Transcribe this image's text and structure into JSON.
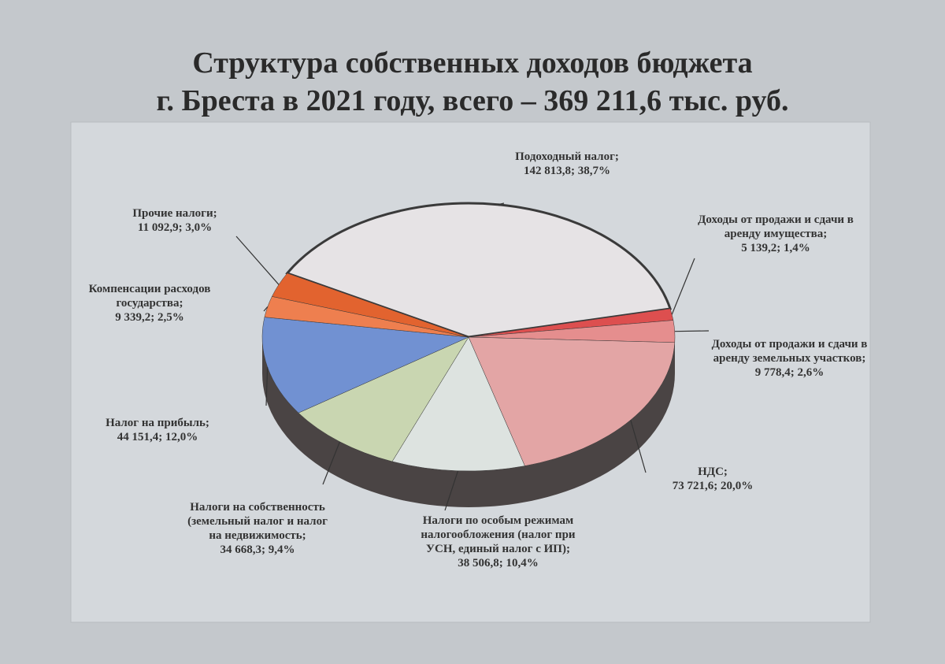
{
  "chart_data": {
    "type": "pie",
    "title": "Структура собственных доходов бюджета",
    "subtitle": "г. Бреста в 2021 году, всего – 369 211,6 тыс. руб.",
    "categories": [
      "Подоходный налог;",
      "Доходы от продажи и сдачи в аренду имущества;",
      "Доходы от продажи и сдачи в аренду земельных участков;",
      "НДС;",
      "Налоги по особым режимам налогообложения (налог при УСН, единый налог с ИП);",
      "Налоги на собственность (земельный налог и налог на недвижимость;",
      "Налог на прибыль;",
      "Компенсации расходов государства;",
      "Прочие налоги;"
    ],
    "values": [
      142813.8,
      5139.2,
      9778.4,
      73721.6,
      38506.8,
      34668.3,
      44151.4,
      9339.2,
      11092.9
    ],
    "value_labels": [
      "142 813,8; 38,7%",
      "5 139,2; 1,4%",
      "9 778,4; 2,6%",
      "73 721,6; 20,0%",
      "38 506,8; 10,4%",
      "34 668,3; 9,4%",
      "44 151,4; 12,0%",
      "9 339,2; 2,5%",
      "11 092,9; 3,0%"
    ],
    "colors": [
      "#e6e3e5",
      "#dd4f4f",
      "#e58e8e",
      "#e3a5a5",
      "#dde3e0",
      "#c9d6b1",
      "#7191d2",
      "#ee7f4f",
      "#e2632f"
    ]
  }
}
